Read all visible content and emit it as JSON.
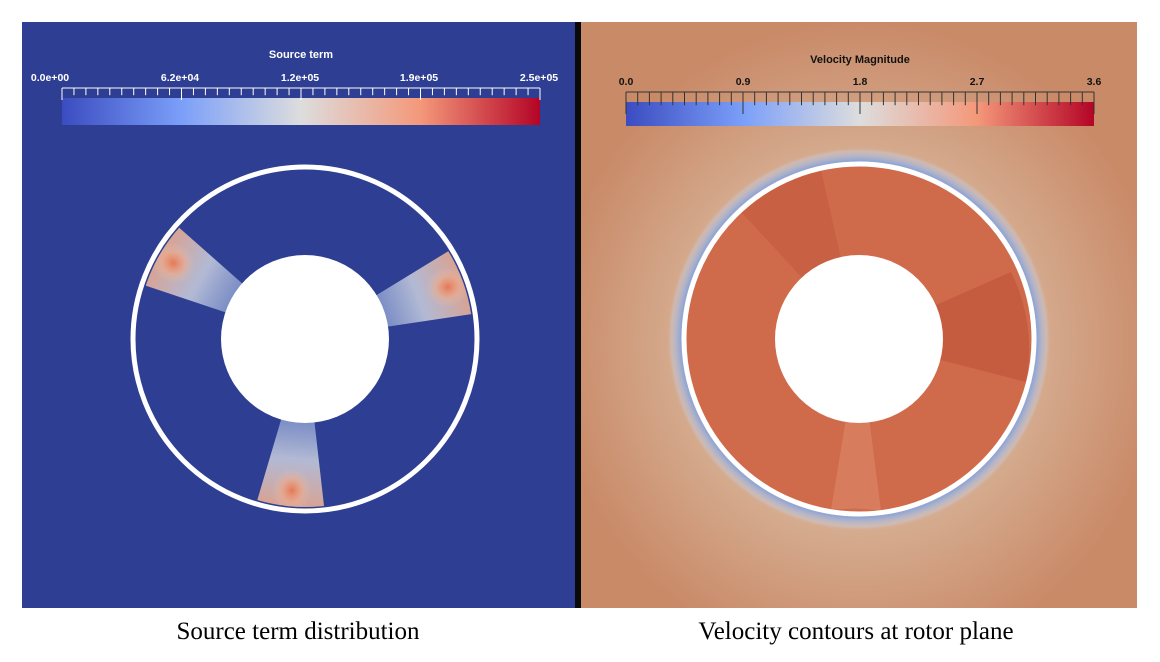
{
  "panels": [
    {
      "colorbar_title": "Source term",
      "tick_labels": [
        "0.0e+00",
        "6.2e+04",
        "1.2e+05",
        "1.9e+05",
        "2.5e+05"
      ],
      "colormap_range": [
        0,
        250000
      ],
      "background_color": "#2e3e92",
      "caption": "Source term distribution"
    },
    {
      "colorbar_title": "Velocity Magnitude",
      "tick_labels": [
        "0.0",
        "0.9",
        "1.8",
        "2.7",
        "3.6"
      ],
      "colormap_range": [
        0.0,
        3.6
      ],
      "background_color": "#c98a68",
      "caption": "Velocity contours at rotor plane"
    }
  ],
  "colormap": {
    "low": "#3b4cc0",
    "mid": "#dddddd",
    "high": "#b40426"
  },
  "divider_color": "#0a0a0a"
}
